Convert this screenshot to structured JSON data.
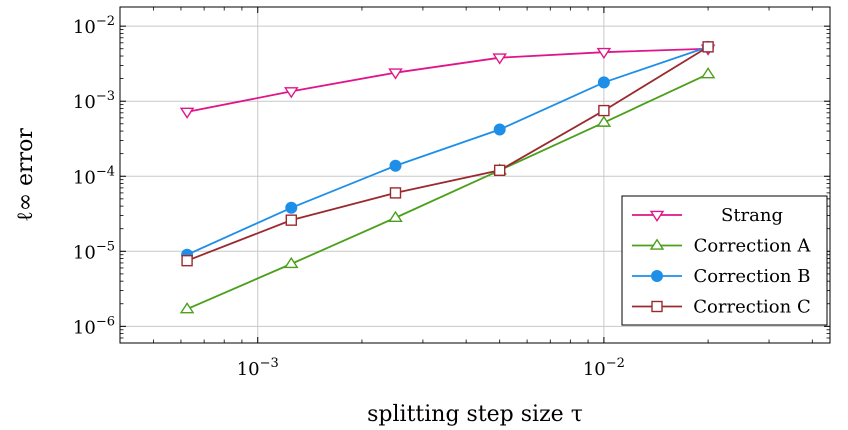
{
  "chart_data": {
    "type": "line",
    "title": "",
    "xlabel": "splitting step size τ",
    "ylabel": "ℓ∞ error",
    "xscale": "log",
    "yscale": "log",
    "xlim": [
      0.0004,
      0.045
    ],
    "ylim": [
      6e-07,
      0.018
    ],
    "grid": true,
    "legend_position": "bottom-right",
    "x_ticks": [
      {
        "value": 0.001,
        "base": "10",
        "exp": "−3"
      },
      {
        "value": 0.01,
        "base": "10",
        "exp": "−2"
      }
    ],
    "y_ticks": [
      {
        "value": 1e-06,
        "base": "10",
        "exp": "−6"
      },
      {
        "value": 1e-05,
        "base": "10",
        "exp": "−5"
      },
      {
        "value": 0.0001,
        "base": "10",
        "exp": "−4"
      },
      {
        "value": 0.001,
        "base": "10",
        "exp": "−3"
      },
      {
        "value": 0.01,
        "base": "10",
        "exp": "−2"
      }
    ],
    "x": [
      0.000625,
      0.00125,
      0.0025,
      0.005,
      0.01,
      0.02
    ],
    "series": [
      {
        "name": "Strang",
        "color": "#e0158a",
        "marker": "triangle-down",
        "values": [
          0.00072,
          0.00135,
          0.0024,
          0.0038,
          0.0045,
          0.005
        ]
      },
      {
        "name": "Correction A",
        "color": "#4aa01a",
        "marker": "triangle-up",
        "values": [
          1.7e-06,
          6.8e-06,
          2.8e-05,
          0.00012,
          0.00052,
          0.0023
        ]
      },
      {
        "name": "Correction B",
        "color": "#1e8fe8",
        "marker": "circle",
        "values": [
          9e-06,
          3.8e-05,
          0.000138,
          0.00042,
          0.00178,
          0.0053
        ]
      },
      {
        "name": "Correction C",
        "color": "#9b2a2f",
        "marker": "square",
        "values": [
          7.5e-06,
          2.6e-05,
          6e-05,
          0.00012,
          0.00075,
          0.0053
        ]
      }
    ]
  }
}
